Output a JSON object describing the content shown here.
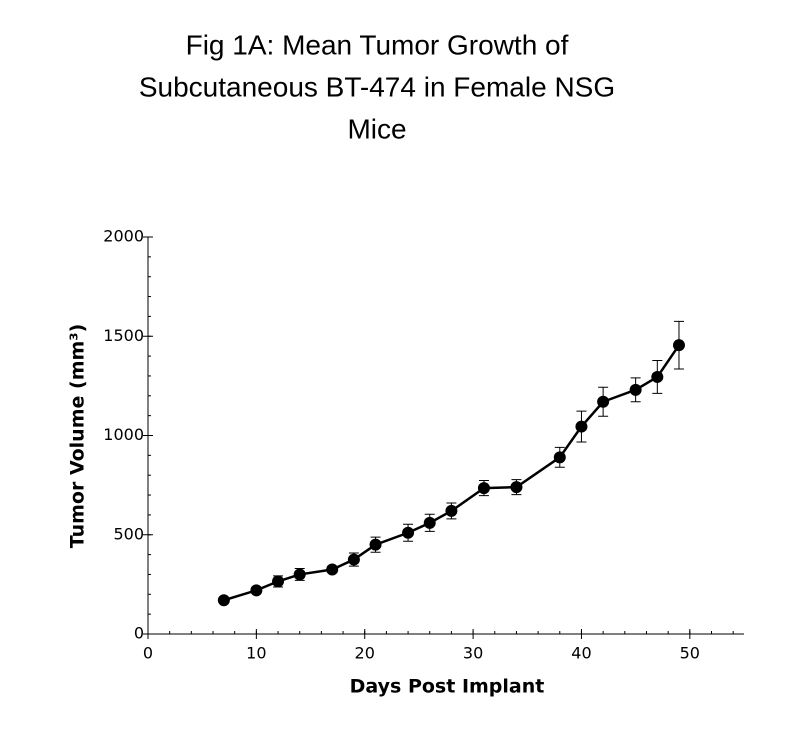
{
  "chart_data": {
    "type": "line",
    "title": [
      "Fig 1A: Mean Tumor Growth of",
      "Subcutaneous BT-474 in Female NSG",
      "Mice"
    ],
    "x_label": "Days Post Implant",
    "y_label": "Tumor Volume (mm³)",
    "x": [
      7,
      10,
      12,
      14,
      17,
      19,
      21,
      24,
      26,
      28,
      31,
      34,
      38,
      40,
      42,
      45,
      47,
      49
    ],
    "series": [
      {
        "name": "BT-474",
        "color": "#000000",
        "values": [
          170,
          220,
          265,
          300,
          325,
          375,
          450,
          510,
          560,
          620,
          735,
          740,
          890,
          1045,
          1170,
          1230,
          1295,
          1455
        ],
        "errors": [
          10,
          15,
          28,
          30,
          15,
          33,
          38,
          43,
          43,
          40,
          38,
          38,
          50,
          78,
          73,
          60,
          83,
          120
        ]
      }
    ],
    "xlim": [
      0,
      55
    ],
    "xticks": [
      0,
      10,
      20,
      30,
      40,
      50
    ],
    "ylim": [
      0,
      2000
    ],
    "yticks": [
      0,
      500,
      1000,
      1500,
      2000
    ],
    "grid": false
  }
}
